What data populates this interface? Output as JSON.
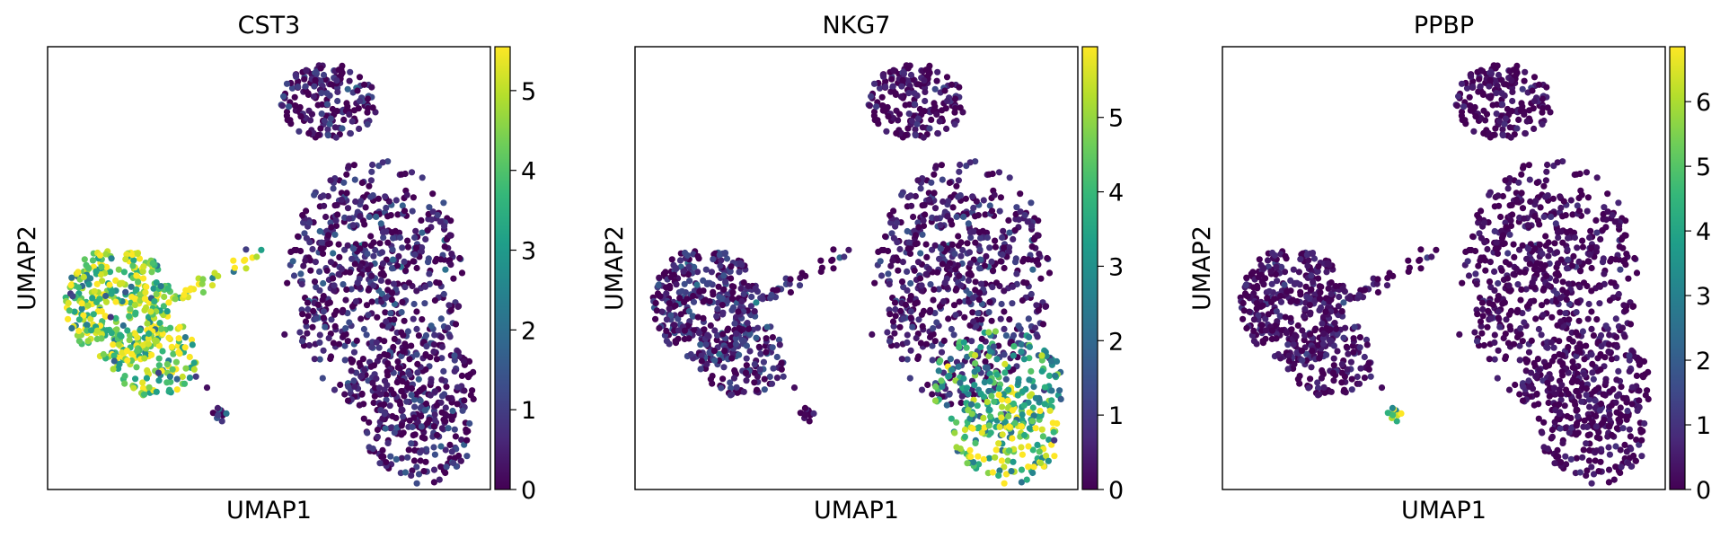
{
  "chart_data": [
    {
      "type": "scatter",
      "title": "CST3",
      "xlabel": "UMAP1",
      "ylabel": "UMAP2",
      "colorbar": {
        "min": 0,
        "max": 5.55,
        "ticks": [
          0,
          1,
          2,
          3,
          4,
          5
        ],
        "colormap": "viridis"
      },
      "grid": false,
      "cluster_expression": {
        "top": 0.75,
        "right_upper": 0.85,
        "right_mid": 0.55,
        "right_lower": 0.85,
        "left": 4.4,
        "arm": 4.9,
        "small_low": 1.2
      }
    },
    {
      "type": "scatter",
      "title": "NKG7",
      "xlabel": "UMAP1",
      "ylabel": "UMAP2",
      "colorbar": {
        "min": 0,
        "max": 5.95,
        "ticks": [
          0,
          1,
          2,
          3,
          4,
          5
        ],
        "colormap": "viridis"
      },
      "grid": false,
      "cluster_expression": {
        "top": 0.45,
        "right_upper": 0.75,
        "right_mid": 3.2,
        "right_lower": 4.8,
        "left": 0.95,
        "arm": 0.9,
        "small_low": 0.2
      }
    },
    {
      "type": "scatter",
      "title": "PPBP",
      "xlabel": "UMAP1",
      "ylabel": "UMAP2",
      "colorbar": {
        "min": 0,
        "max": 6.85,
        "ticks": [
          0,
          1,
          2,
          3,
          4,
          5,
          6
        ],
        "colormap": "viridis"
      },
      "grid": false,
      "cluster_expression": {
        "top": 0.35,
        "right_upper": 0.35,
        "right_mid": 0.35,
        "right_lower": 0.35,
        "left": 0.5,
        "arm": 0.45,
        "small_low": 5.3
      }
    }
  ]
}
